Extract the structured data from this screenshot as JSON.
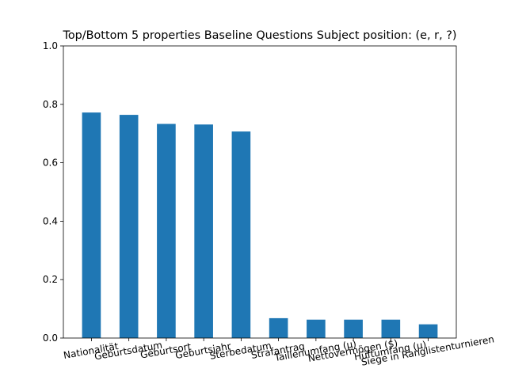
{
  "chart_data": {
    "type": "bar",
    "title": "Top/Bottom 5 properties Baseline Questions Subject position: (e, r, ?)",
    "xlabel": "",
    "ylabel": "",
    "ylim": [
      0,
      1.0
    ],
    "yticks": [
      0.0,
      0.2,
      0.4,
      0.6,
      0.8,
      1.0
    ],
    "ytick_labels": [
      "0.0",
      "0.2",
      "0.4",
      "0.6",
      "0.8",
      "1.0"
    ],
    "categories": [
      "Nationalität",
      "Geburtsdatum",
      "Geburtsort",
      "Geburtsjahr",
      "Sterbedatum",
      "Strafantrag",
      "Taillenumfang (μ)",
      "Nettovermögen ($)",
      "Hüftumfang (μ)",
      "Siege in Ranglistenturnieren"
    ],
    "values": [
      0.772,
      0.764,
      0.733,
      0.731,
      0.707,
      0.068,
      0.063,
      0.063,
      0.063,
      0.047
    ],
    "bar_color": "#1f77b4",
    "grid": false,
    "legend": "none",
    "xtick_rotation": -10
  }
}
